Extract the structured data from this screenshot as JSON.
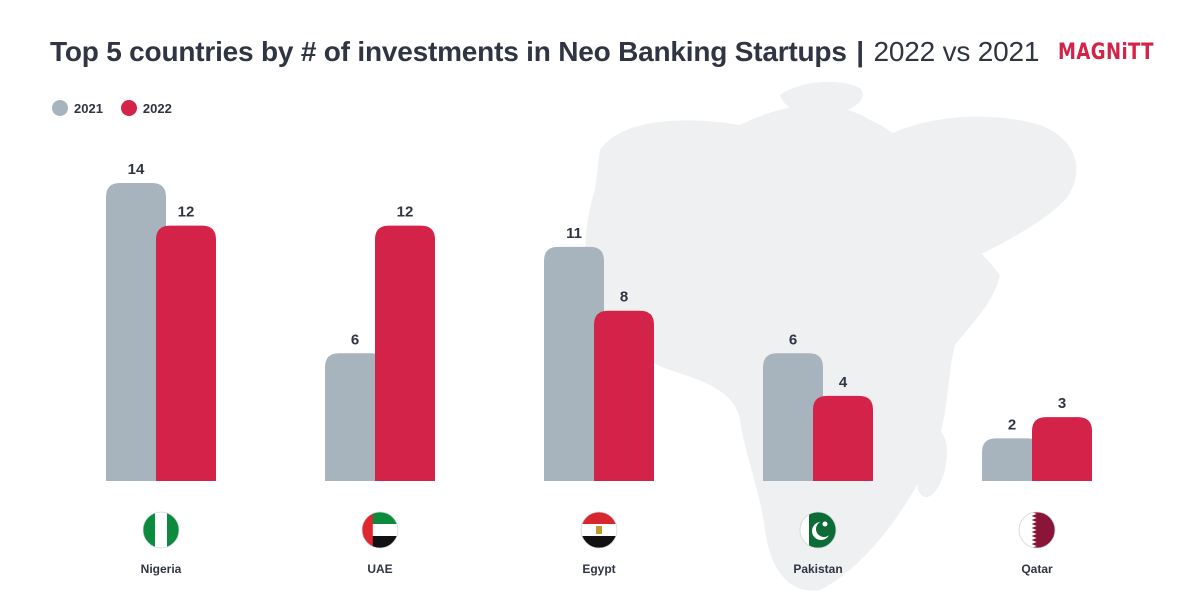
{
  "title": {
    "main": "Top 5 countries by # of investments in Neo Banking Startups",
    "separator": "|",
    "sub": "2022 vs 2021"
  },
  "logo": {
    "text": "MAGNiTT"
  },
  "colors": {
    "2021": "#a7b4be",
    "2022": "#d42348",
    "text": "#2f3542",
    "map": "#eef0f2"
  },
  "chart_data": {
    "type": "bar",
    "categories": [
      "Nigeria",
      "UAE",
      "Egypt",
      "Pakistan",
      "Qatar"
    ],
    "series": [
      {
        "name": "2021",
        "values": [
          14,
          6,
          11,
          6,
          2
        ]
      },
      {
        "name": "2022",
        "values": [
          12,
          12,
          8,
          4,
          3
        ]
      }
    ],
    "title": "Top 5 countries by # of investments in Neo Banking Startups | 2022 vs 2021",
    "legend_position": "top-left",
    "grid": false,
    "ylim": [
      0,
      14
    ]
  },
  "flags": [
    {
      "country": "Nigeria",
      "icon": "nigeria-flag-icon"
    },
    {
      "country": "UAE",
      "icon": "uae-flag-icon"
    },
    {
      "country": "Egypt",
      "icon": "egypt-flag-icon"
    },
    {
      "country": "Pakistan",
      "icon": "pakistan-flag-icon"
    },
    {
      "country": "Qatar",
      "icon": "qatar-flag-icon"
    }
  ]
}
